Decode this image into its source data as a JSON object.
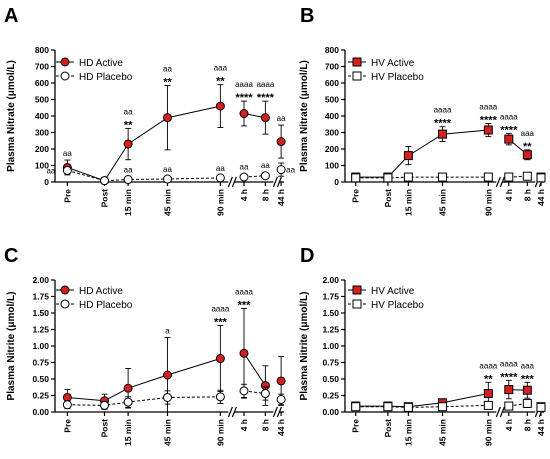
{
  "chart_data": [
    {
      "type": "line",
      "panel": "A",
      "ylabel": "Plasma Nitrate (μmol/L)",
      "ylim": [
        0,
        800
      ],
      "yticks": [
        "0",
        "100",
        "200",
        "300",
        "400",
        "500",
        "600",
        "700",
        "800"
      ],
      "marker": "circle",
      "categories": [
        "Pre",
        "Post",
        "15 min",
        "45 min",
        "90 min",
        "4 h",
        "8 h",
        "44 h"
      ],
      "series": [
        {
          "name": "HD Active",
          "style": "solid",
          "color": "#d62020",
          "values": [
            88,
            8,
            230,
            390,
            460,
            415,
            390,
            245
          ],
          "errors": [
            45,
            8,
            95,
            195,
            130,
            75,
            100,
            100
          ]
        },
        {
          "name": "HD Placebo",
          "style": "dashed",
          "color": "#ffffff",
          "values": [
            70,
            8,
            15,
            18,
            25,
            30,
            38,
            75
          ],
          "errors": [
            20,
            4,
            5,
            5,
            5,
            8,
            10,
            40
          ]
        }
      ],
      "annotations": [
        {
          "index": 0,
          "series": 0,
          "lines": [
            "aa"
          ]
        },
        {
          "index": 2,
          "series": 0,
          "lines": [
            "aa",
            "**"
          ]
        },
        {
          "index": 3,
          "series": 0,
          "lines": [
            "aa",
            "**"
          ]
        },
        {
          "index": 4,
          "series": 0,
          "lines": [
            "aaa",
            "**"
          ]
        },
        {
          "index": 5,
          "series": 0,
          "lines": [
            "aaaa",
            "****"
          ]
        },
        {
          "index": 6,
          "series": 0,
          "lines": [
            "aaaa",
            "****"
          ]
        },
        {
          "index": 7,
          "series": 0,
          "lines": [
            "aa"
          ]
        },
        {
          "index": 0,
          "series": 1,
          "lines": [
            "aa"
          ]
        },
        {
          "index": 2,
          "series": 1,
          "lines": [
            "aa"
          ]
        },
        {
          "index": 3,
          "series": 1,
          "lines": [
            "aa"
          ]
        },
        {
          "index": 4,
          "series": 1,
          "lines": [
            "aa"
          ]
        },
        {
          "index": 5,
          "series": 1,
          "lines": [
            "aa"
          ]
        },
        {
          "index": 6,
          "series": 1,
          "lines": [
            "aa"
          ]
        },
        {
          "index": 7,
          "series": 1,
          "lines": [
            "aa"
          ]
        }
      ]
    },
    {
      "type": "line",
      "panel": "B",
      "ylabel": "Plasma Nitrate (μmol/L)",
      "ylim": [
        0,
        800
      ],
      "yticks": [
        "0",
        "100",
        "200",
        "300",
        "400",
        "500",
        "600",
        "700",
        "800"
      ],
      "marker": "square",
      "categories": [
        "Pre",
        "Post",
        "15 min",
        "45 min",
        "90 min",
        "4 h",
        "8 h",
        "44 h"
      ],
      "series": [
        {
          "name": "HV Active",
          "style": "solid",
          "color": "#d62020",
          "values": [
            30,
            30,
            160,
            290,
            315,
            260,
            165,
            30
          ],
          "errors": [
            10,
            10,
            55,
            45,
            40,
            35,
            30,
            10
          ]
        },
        {
          "name": "HV Placebo",
          "style": "dashed",
          "color": "#ffffff",
          "values": [
            25,
            25,
            30,
            30,
            30,
            30,
            35,
            25
          ],
          "errors": [
            5,
            5,
            5,
            5,
            5,
            5,
            8,
            5
          ]
        }
      ],
      "annotations": [
        {
          "index": 3,
          "series": 0,
          "lines": [
            "aaaa",
            "****"
          ]
        },
        {
          "index": 4,
          "series": 0,
          "lines": [
            "aaaa",
            "****"
          ]
        },
        {
          "index": 5,
          "series": 0,
          "lines": [
            "aaaa",
            "****"
          ]
        },
        {
          "index": 6,
          "series": 0,
          "lines": [
            "aaa",
            "**"
          ]
        }
      ]
    },
    {
      "type": "line",
      "panel": "C",
      "ylabel": "Plasma Nitrite (μmol/L)",
      "ylim": [
        0,
        2
      ],
      "yticks": [
        "0.00",
        "0.25",
        "0.50",
        "0.75",
        "1.00",
        "1.25",
        "1.50",
        "1.75",
        "2.00"
      ],
      "marker": "circle",
      "categories": [
        "Pre",
        "Post",
        "15 min",
        "45 min",
        "90 min",
        "4 h",
        "8 h",
        "44 h"
      ],
      "series": [
        {
          "name": "HD Active",
          "style": "solid",
          "color": "#d62020",
          "values": [
            0.22,
            0.17,
            0.36,
            0.56,
            0.81,
            0.89,
            0.4,
            0.47
          ],
          "errors": [
            0.12,
            0.1,
            0.3,
            0.57,
            0.5,
            0.68,
            0.3,
            0.37
          ]
        },
        {
          "name": "HD Placebo",
          "style": "dashed",
          "color": "#ffffff",
          "values": [
            0.11,
            0.1,
            0.15,
            0.22,
            0.23,
            0.32,
            0.28,
            0.19
          ],
          "errors": [
            0.06,
            0.06,
            0.08,
            0.1,
            0.1,
            0.1,
            0.1,
            0.08
          ]
        }
      ],
      "annotations": [
        {
          "index": 3,
          "series": 0,
          "lines": [
            "a"
          ]
        },
        {
          "index": 4,
          "series": 0,
          "lines": [
            "aaaa",
            "***"
          ]
        },
        {
          "index": 5,
          "series": 0,
          "lines": [
            "aaaa",
            "***"
          ]
        }
      ]
    },
    {
      "type": "line",
      "panel": "D",
      "ylabel": "Plasma Nitrite (μmol/L)",
      "ylim": [
        0,
        2
      ],
      "yticks": [
        "0.00",
        "0.25",
        "0.50",
        "0.75",
        "1.00",
        "1.25",
        "1.50",
        "1.75",
        "2.00"
      ],
      "marker": "square",
      "categories": [
        "Pre",
        "Post",
        "15 min",
        "45 min",
        "90 min",
        "4 h",
        "8 h",
        "44 h"
      ],
      "series": [
        {
          "name": "HV Active",
          "style": "solid",
          "color": "#d62020",
          "values": [
            0.09,
            0.09,
            0.08,
            0.14,
            0.28,
            0.34,
            0.33,
            0.08
          ],
          "errors": [
            0.06,
            0.06,
            0.03,
            0.05,
            0.17,
            0.14,
            0.12,
            0.03
          ]
        },
        {
          "name": "HV Placebo",
          "style": "dashed",
          "color": "#ffffff",
          "values": [
            0.08,
            0.08,
            0.07,
            0.08,
            0.1,
            0.09,
            0.13,
            0.07
          ],
          "errors": [
            0.04,
            0.04,
            0.03,
            0.04,
            0.05,
            0.05,
            0.06,
            0.03
          ]
        }
      ],
      "annotations": [
        {
          "index": 4,
          "series": 0,
          "lines": [
            "aaaa",
            "**"
          ]
        },
        {
          "index": 5,
          "series": 0,
          "lines": [
            "aaaa",
            "****"
          ]
        },
        {
          "index": 6,
          "series": 0,
          "lines": [
            "aaa",
            "***"
          ]
        }
      ]
    }
  ]
}
